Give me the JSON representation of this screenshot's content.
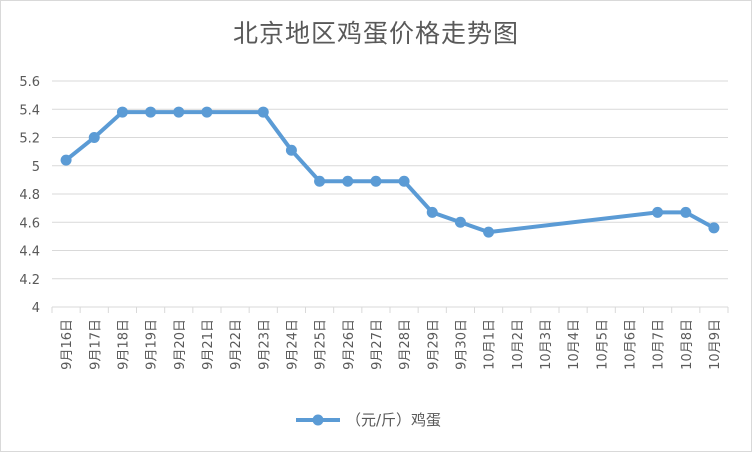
{
  "chart_data": {
    "type": "line",
    "title": "北京地区鸡蛋价格走势图",
    "xlabel": "",
    "ylabel": "",
    "ylim": [
      4,
      5.6
    ],
    "yticks": [
      4,
      4.2,
      4.4,
      4.6,
      4.8,
      5,
      5.2,
      5.4,
      5.6
    ],
    "ytick_labels": [
      "4",
      "4.2",
      "4.4",
      "4.6",
      "4.8",
      "5",
      "5.2",
      "5.4",
      "5.6"
    ],
    "grid": true,
    "legend_position": "bottom",
    "categories": [
      "9月16日",
      "9月17日",
      "9月18日",
      "9月19日",
      "9月20日",
      "9月21日",
      "9月22日",
      "9月23日",
      "9月24日",
      "9月25日",
      "9月26日",
      "9月27日",
      "9月28日",
      "9月29日",
      "9月30日",
      "10月1日",
      "10月2日",
      "10月3日",
      "10月4日",
      "10月5日",
      "10月6日",
      "10月7日",
      "10月8日",
      "10月9日"
    ],
    "series": [
      {
        "name": "（元/斤）鸡蛋",
        "color": "#5b9bd5",
        "values": [
          5.04,
          5.2,
          5.38,
          5.38,
          5.38,
          5.38,
          null,
          5.38,
          5.11,
          4.89,
          4.89,
          4.89,
          4.89,
          4.67,
          4.6,
          4.53,
          null,
          null,
          null,
          null,
          null,
          4.67,
          4.67,
          4.56
        ]
      }
    ]
  }
}
